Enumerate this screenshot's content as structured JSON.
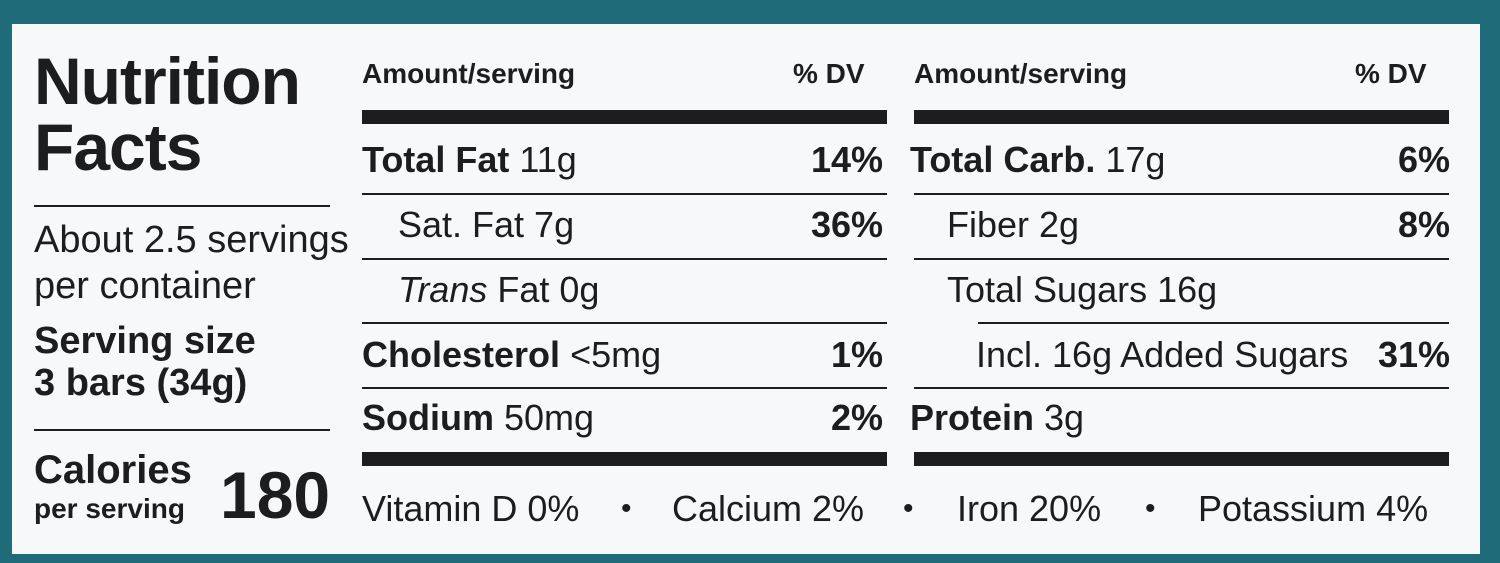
{
  "title_line1": "Nutrition",
  "title_line2": "Facts",
  "servings_line1": "About 2.5 servings",
  "servings_line2": "per container",
  "serving_size_label": "Serving size",
  "serving_size_value": "3 bars (34g)",
  "calories_label": "Calories",
  "calories_sub": "per serving",
  "calories_value": "180",
  "left_table": {
    "header_amount": "Amount/serving",
    "header_dv": "% DV",
    "rows": [
      {
        "label": "Total Fat",
        "amount": "11g",
        "dv": "14%"
      },
      {
        "label": "Sat. Fat 7g",
        "dv": "36%"
      },
      {
        "label_italic": "Trans",
        "label_rest": "Fat 0g"
      },
      {
        "label": "Cholesterol",
        "amount": "<5mg",
        "dv": "1%"
      },
      {
        "label": "Sodium",
        "amount": "50mg",
        "dv": "2%"
      }
    ]
  },
  "right_table": {
    "header_amount": "Amount/serving",
    "header_dv": "% DV",
    "rows": [
      {
        "label": "Total Carb.",
        "amount": "17g",
        "dv": "6%"
      },
      {
        "label": "Fiber 2g",
        "dv": "8%"
      },
      {
        "label": "Total Sugars 16g"
      },
      {
        "label": "Incl. 16g Added Sugars",
        "dv": "31%"
      },
      {
        "label": "Protein",
        "amount": "3g"
      }
    ]
  },
  "vitamins": [
    "Vitamin D 0%",
    "Calcium 2%",
    "Iron 20%",
    "Potassium 4%"
  ],
  "separator": "•",
  "colors": {
    "background": "#1f6b7a",
    "label_bg": "#f7f8f9",
    "ink": "#1d1d1f"
  }
}
